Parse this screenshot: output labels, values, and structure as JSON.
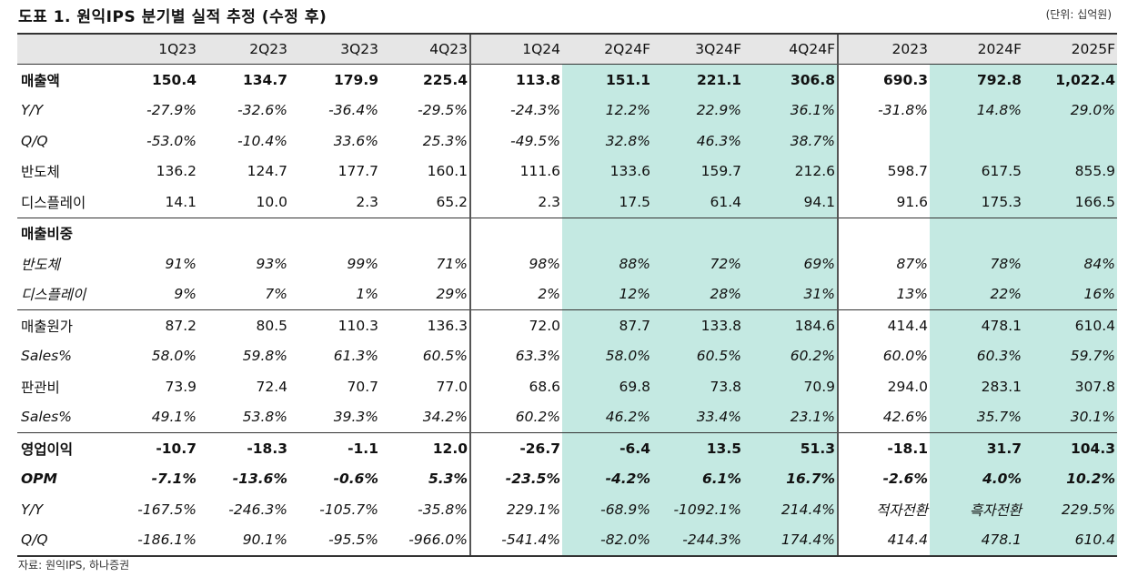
{
  "title": "도표 1. 원익IPS 분기별 실적 추정 (수정 후)",
  "unit": "(단위: 십억원)",
  "source": "자료: 원익IPS, 하나증권",
  "columns": [
    "1Q23",
    "2Q23",
    "3Q23",
    "4Q23",
    "1Q24",
    "2Q24F",
    "3Q24F",
    "4Q24F",
    "2023",
    "2024F",
    "2025F"
  ],
  "rows": [
    {
      "label": "매출액",
      "style": "bold",
      "values": [
        "150.4",
        "134.7",
        "179.9",
        "225.4",
        "113.8",
        "151.1",
        "221.1",
        "306.8",
        "690.3",
        "792.8",
        "1,022.4"
      ]
    },
    {
      "label": "Y/Y",
      "style": "ital",
      "values": [
        "-27.9%",
        "-32.6%",
        "-36.4%",
        "-29.5%",
        "-24.3%",
        "12.2%",
        "22.9%",
        "36.1%",
        "-31.8%",
        "14.8%",
        "29.0%"
      ]
    },
    {
      "label": "Q/Q",
      "style": "ital",
      "values": [
        "-53.0%",
        "-10.4%",
        "33.6%",
        "25.3%",
        "-49.5%",
        "32.8%",
        "46.3%",
        "38.7%",
        "",
        "",
        ""
      ]
    },
    {
      "label": "반도체",
      "style": "",
      "values": [
        "136.2",
        "124.7",
        "177.7",
        "160.1",
        "111.6",
        "133.6",
        "159.7",
        "212.6",
        "598.7",
        "617.5",
        "855.9"
      ]
    },
    {
      "label": "디스플레이",
      "style": "",
      "values": [
        "14.1",
        "10.0",
        "2.3",
        "65.2",
        "2.3",
        "17.5",
        "61.4",
        "94.1",
        "91.6",
        "175.3",
        "166.5"
      ]
    },
    {
      "label": "매출비중",
      "style": "bold topline",
      "values": [
        "",
        "",
        "",
        "",
        "",
        "",
        "",
        "",
        "",
        "",
        ""
      ]
    },
    {
      "label": "반도체",
      "style": "ital",
      "values": [
        "91%",
        "93%",
        "99%",
        "71%",
        "98%",
        "88%",
        "72%",
        "69%",
        "87%",
        "78%",
        "84%"
      ]
    },
    {
      "label": "디스플레이",
      "style": "ital",
      "values": [
        "9%",
        "7%",
        "1%",
        "29%",
        "2%",
        "12%",
        "28%",
        "31%",
        "13%",
        "22%",
        "16%"
      ]
    },
    {
      "label": "매출원가",
      "style": "topline",
      "values": [
        "87.2",
        "80.5",
        "110.3",
        "136.3",
        "72.0",
        "87.7",
        "133.8",
        "184.6",
        "414.4",
        "478.1",
        "610.4"
      ]
    },
    {
      "label": "Sales%",
      "style": "ital",
      "values": [
        "58.0%",
        "59.8%",
        "61.3%",
        "60.5%",
        "63.3%",
        "58.0%",
        "60.5%",
        "60.2%",
        "60.0%",
        "60.3%",
        "59.7%"
      ]
    },
    {
      "label": "판관비",
      "style": "",
      "values": [
        "73.9",
        "72.4",
        "70.7",
        "77.0",
        "68.6",
        "69.8",
        "73.8",
        "70.9",
        "294.0",
        "283.1",
        "307.8"
      ]
    },
    {
      "label": "Sales%",
      "style": "ital",
      "values": [
        "49.1%",
        "53.8%",
        "39.3%",
        "34.2%",
        "60.2%",
        "46.2%",
        "33.4%",
        "23.1%",
        "42.6%",
        "35.7%",
        "30.1%"
      ]
    },
    {
      "label": "영업이익",
      "style": "bold topline",
      "values": [
        "-10.7",
        "-18.3",
        "-1.1",
        "12.0",
        "-26.7",
        "-6.4",
        "13.5",
        "51.3",
        "-18.1",
        "31.7",
        "104.3"
      ]
    },
    {
      "label": "OPM",
      "style": "italbold",
      "values": [
        "-7.1%",
        "-13.6%",
        "-0.6%",
        "5.3%",
        "-23.5%",
        "-4.2%",
        "6.1%",
        "16.7%",
        "-2.6%",
        "4.0%",
        "10.2%"
      ]
    },
    {
      "label": "Y/Y",
      "style": "ital",
      "values": [
        "-167.5%",
        "-246.3%",
        "-105.7%",
        "-35.8%",
        "229.1%",
        "-68.9%",
        "-1092.1%",
        "214.4%",
        "적자전환",
        "흑자전환",
        "229.5%"
      ]
    },
    {
      "label": "Q/Q",
      "style": "ital bottomline",
      "values": [
        "-186.1%",
        "90.1%",
        "-95.5%",
        "-966.0%",
        "-541.4%",
        "-82.0%",
        "-244.3%",
        "174.4%",
        "414.4",
        "478.1",
        "610.4"
      ]
    }
  ],
  "highlight_columns": [
    5,
    6,
    7,
    9,
    10
  ],
  "highlight_color": "#c4e9e2"
}
